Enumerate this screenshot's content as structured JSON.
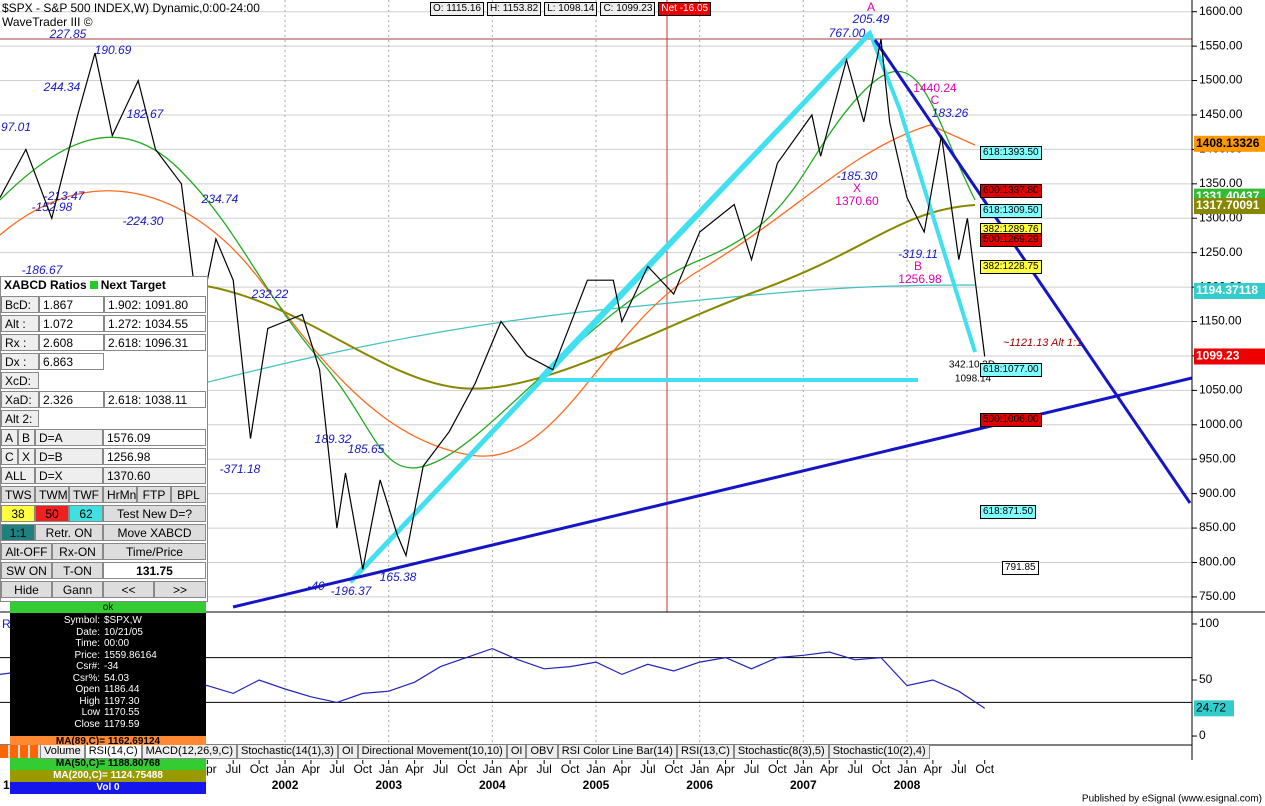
{
  "header": {
    "title": "$SPX - S&P 500 INDEX,W) Dynamic,0:00-24:00",
    "study": "WaveTrader III ©",
    "quote": [
      "O: 1115.16",
      "H: 1153.82",
      "L: 1098.14",
      "C: 1099.23"
    ],
    "net": "Net -16.05"
  },
  "chart_data": [
    {
      "type": "line",
      "color": "#000000",
      "grid": true,
      "xlim": [
        "1999-04",
        "2010-10"
      ],
      "ylim": [
        731,
        1617
      ],
      "yticks": [
        {
          "value": 1600,
          "label": "1600.00"
        },
        {
          "value": 1550,
          "label": "1550.00"
        },
        {
          "value": 1500,
          "label": "1500.00"
        },
        {
          "value": 1450,
          "label": "1450.00"
        },
        {
          "value": 1400,
          "label": "1400.00"
        },
        {
          "value": 1350,
          "label": "1350.00"
        },
        {
          "value": 1300,
          "label": "1300.00"
        },
        {
          "value": 1250,
          "label": "1250.00"
        },
        {
          "value": 1200,
          "label": "1200.00"
        },
        {
          "value": 1150,
          "label": "1150.00"
        },
        {
          "value": 1100,
          "label": "1100.00"
        },
        {
          "value": 1050,
          "label": "1050.00"
        },
        {
          "value": 1000,
          "label": "1000.00"
        },
        {
          "value": 950,
          "label": "950.00"
        },
        {
          "value": 900,
          "label": "900.00"
        },
        {
          "value": 850,
          "label": "850.00"
        },
        {
          "value": 800,
          "label": "800.00"
        },
        {
          "value": 750,
          "label": "750.00"
        }
      ],
      "xticks": [
        {
          "value": "2001-04",
          "label": "Apr"
        },
        {
          "value": "2001-07",
          "label": "Jul"
        },
        {
          "value": "2001-10",
          "label": "Oct"
        },
        {
          "value": "2002-01",
          "label": "Jan"
        },
        {
          "value": "2002-04",
          "label": "Apr"
        },
        {
          "value": "2002-07",
          "label": "Jul"
        },
        {
          "value": "2002-10",
          "label": "Oct"
        },
        {
          "value": "2003-01",
          "label": "Jan"
        },
        {
          "value": "2003-04",
          "label": "Apr"
        },
        {
          "value": "2003-07",
          "label": "Jul"
        },
        {
          "value": "2003-10",
          "label": "Oct"
        },
        {
          "value": "2004-01",
          "label": "Jan"
        },
        {
          "value": "2004-04",
          "label": "Apr"
        },
        {
          "value": "2004-07",
          "label": "Jul"
        },
        {
          "value": "2004-10",
          "label": "Oct"
        },
        {
          "value": "2005-01",
          "label": "Jan"
        },
        {
          "value": "2005-04",
          "label": "Apr"
        },
        {
          "value": "2005-07",
          "label": "Jul"
        },
        {
          "value": "2005-10",
          "label": "Oct"
        },
        {
          "value": "2006-01",
          "label": "Jan"
        },
        {
          "value": "2006-04",
          "label": "Apr"
        },
        {
          "value": "2006-07",
          "label": "Jul"
        },
        {
          "value": "2006-10",
          "label": "Oct"
        },
        {
          "value": "2007-01",
          "label": "Jan"
        },
        {
          "value": "2007-04",
          "label": "Apr"
        },
        {
          "value": "2007-07",
          "label": "Jul"
        },
        {
          "value": "2007-10",
          "label": "Oct"
        },
        {
          "value": "2008-01",
          "label": "Jan"
        },
        {
          "value": "2008-04",
          "label": "Apr"
        },
        {
          "value": "2008-07",
          "label": "Jul"
        },
        {
          "value": "2008-10",
          "label": "Oct"
        }
      ],
      "year_labels": [
        {
          "value": "2002-01",
          "label": "2002"
        },
        {
          "value": "2003-01",
          "label": "2003"
        },
        {
          "value": "2004-01",
          "label": "2004"
        },
        {
          "value": "2005-01",
          "label": "2005"
        },
        {
          "value": "2006-01",
          "label": "2006"
        },
        {
          "value": "2007-01",
          "label": "2007"
        },
        {
          "value": "2008-01",
          "label": "2008"
        }
      ],
      "x": [
        "1999-04",
        "1999-07",
        "1999-10",
        "2000-01",
        "2000-03",
        "2000-05",
        "2000-08",
        "2000-10",
        "2001-01",
        "2001-03",
        "2001-05",
        "2001-07",
        "2001-09",
        "2001-11",
        "2002-01",
        "2002-03",
        "2002-05",
        "2002-07",
        "2002-08",
        "2002-10",
        "2002-12",
        "2003-02",
        "2003-03",
        "2003-05",
        "2003-08",
        "2003-11",
        "2004-02",
        "2004-05",
        "2004-08",
        "2004-12",
        "2005-03",
        "2005-04",
        "2005-07",
        "2005-10",
        "2006-01",
        "2006-05",
        "2006-07",
        "2006-10",
        "2007-02",
        "2007-03",
        "2007-06",
        "2007-08",
        "2007-10",
        "2007-11",
        "2008-01",
        "2008-03",
        "2008-05",
        "2008-07",
        "2008-08",
        "2008-10"
      ],
      "values": [
        1330,
        1400,
        1300,
        1450,
        1540,
        1420,
        1500,
        1400,
        1350,
        1150,
        1270,
        1210,
        980,
        1140,
        1150,
        1160,
        1080,
        850,
        930,
        790,
        920,
        840,
        810,
        940,
        990,
        1060,
        1150,
        1100,
        1080,
        1210,
        1210,
        1150,
        1230,
        1190,
        1280,
        1320,
        1240,
        1380,
        1450,
        1390,
        1530,
        1440,
        1560,
        1440,
        1330,
        1280,
        1420,
        1240,
        1300,
        1099.23
      ],
      "markers": [
        {
          "value": 1408.13326,
          "color": "#ff9900",
          "text_color": "#000000"
        },
        {
          "value": 1331.40437,
          "color": "#33bb33",
          "text_color": "#ffffff"
        },
        {
          "value": 1317.70091,
          "color": "#888800",
          "text_color": "#ffffff"
        },
        {
          "value": 1194.37118,
          "color": "#33cccc",
          "text_color": "#ffffff"
        },
        {
          "value": 1099.23,
          "color": "#ee0000",
          "text_color": "#ffffff"
        }
      ]
    },
    {
      "type": "line",
      "title": "R",
      "color": "#2222bb",
      "xlim": [
        "1999-04",
        "2010-10"
      ],
      "ylim": [
        -8,
        108
      ],
      "yticks": [
        0,
        50,
        100
      ],
      "levels": [
        70,
        30
      ],
      "x": [
        "1999-04",
        "1999-07",
        "1999-10",
        "2000-01",
        "2000-04",
        "2000-07",
        "2000-10",
        "2001-01",
        "2001-04",
        "2001-07",
        "2001-10",
        "2002-01",
        "2002-04",
        "2002-07",
        "2002-10",
        "2003-01",
        "2003-04",
        "2003-07",
        "2003-10",
        "2004-01",
        "2004-04",
        "2004-07",
        "2004-10",
        "2005-01",
        "2005-04",
        "2005-07",
        "2005-10",
        "2006-01",
        "2006-04",
        "2006-07",
        "2006-10",
        "2007-01",
        "2007-04",
        "2007-07",
        "2007-10",
        "2008-01",
        "2008-04",
        "2008-07",
        "2008-10"
      ],
      "values": [
        55,
        58,
        50,
        60,
        62,
        52,
        55,
        48,
        45,
        38,
        50,
        42,
        35,
        30,
        38,
        40,
        48,
        62,
        70,
        78,
        68,
        60,
        62,
        66,
        55,
        64,
        58,
        66,
        70,
        60,
        70,
        72,
        75,
        68,
        70,
        45,
        50,
        40,
        24.72
      ]
    }
  ],
  "axis_fragment": "1",
  "annotations": [
    "227.85",
    "190.69",
    "244.34",
    "97.01",
    "182.67",
    "-213.47",
    "-152.98",
    "-224.30",
    "234.74",
    "-186.67",
    "232.22",
    "-371.18",
    "189.32",
    "185.65",
    "-40",
    "-196.37",
    "165.38",
    "A",
    "205.49",
    "767.00",
    "1440.24",
    "C",
    "183.26",
    "-185.30",
    "X",
    "1370.60",
    "-319.11",
    "B",
    "1256.98",
    "342.10.3D",
    "1098.14",
    "~1121.13 Alt 1:1"
  ],
  "fib_boxes": [
    "618:1393.50",
    "600:1337.80",
    "618:1309.50",
    "382:1289.76",
    "500:1269.29",
    "382:1228.75",
    "618:1077.00",
    "500:1006.00",
    "618:871.50",
    "791.85"
  ],
  "xabcd": {
    "header": [
      "XABCD Ratios",
      "Next Target"
    ],
    "rows": [
      [
        "BcD:",
        "1.867",
        "1.902: 1091.80"
      ],
      [
        "Alt  :",
        "1.072",
        "1.272: 1034.55"
      ],
      [
        "Rx  :",
        "2.608",
        "2.618: 1096.31"
      ],
      [
        "Dx  :",
        "6.863"
      ],
      [
        "XcD:"
      ],
      [
        "XaD:",
        "2.326",
        "2.618: 1038.11"
      ],
      [
        "Alt 2:"
      ]
    ],
    "targets": [
      [
        "A",
        "B",
        "D=A",
        "1576.09"
      ],
      [
        "C",
        "X",
        "D=B",
        "1256.98"
      ],
      [
        "ALL",
        "D=X",
        "1370.60"
      ]
    ],
    "buttons": [
      [
        "TWS",
        "TWM",
        "TWF",
        "HrMn",
        "FTP",
        "BPL"
      ],
      [
        "38",
        "50",
        "62",
        "Test New D=?"
      ],
      [
        "1:1",
        "Retr. ON",
        "Move XABCD"
      ],
      [
        "Alt-OFF",
        "Rx-ON",
        "Time/Price"
      ],
      [
        "SW ON",
        "T-ON",
        "131.75"
      ],
      [
        "Hide",
        "Gann",
        "<<",
        ">>"
      ]
    ]
  },
  "data_window": {
    "status": "ok",
    "rows": [
      [
        "Symbol:",
        "$SPX,W"
      ],
      [
        "Date:",
        "10/21/05"
      ],
      [
        "Time:",
        "00:00"
      ],
      [
        "Price:",
        "1559.86164"
      ],
      [
        "Csr#:",
        "-34"
      ],
      [
        "Csr%:",
        "54.03"
      ],
      [
        "Open",
        "1186.44"
      ],
      [
        "High",
        "1197.30"
      ],
      [
        "Low",
        "1170.55"
      ],
      [
        "Close",
        "1179.59"
      ]
    ]
  },
  "legend": [
    "MA(89,C)= 1162.69124",
    "MA(50,C)= 1188.80768",
    "MA(200,C)= 1124.75488",
    "Vol 0"
  ],
  "tabs": [
    "Volume",
    "RSI(14,C)",
    "MACD(12,26,9,C)",
    "Stochastic(14(1),3)",
    "OI",
    "Directional Movement(10,10)",
    "OI",
    "OBV",
    "RSI Color Line Bar(14)",
    "RSI(13,C)",
    "Stochastic(8(3),5)",
    "Stochastic(10(2),4)"
  ],
  "footer": "Published by eSignal (www.esignal.com)"
}
